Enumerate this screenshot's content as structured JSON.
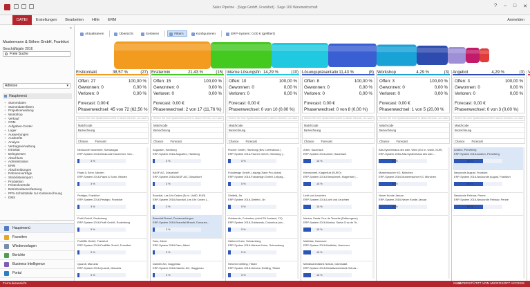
{
  "window": {
    "title": "Sales Pipeline · [Sage GmbH, Frankfurt] · Sage 100 Warenwirtschaft",
    "user_link": "Anmelden"
  },
  "ribbon": {
    "tabs": [
      "DATEI",
      "Erstellungen",
      "Bearbeiten",
      "Hilfe",
      "ERM"
    ]
  },
  "sidebar": {
    "company": "Mustermann & Söhne GmbH, Frankfurt",
    "fiscal_year": "Geschäftsjahr 2016",
    "search_placeholder": "Freie Suche",
    "address_select": "Adresse",
    "menu_head": "Hauptmenü",
    "tree": [
      "Stammdaten",
      "Stammdatenlisten",
      "Projektverwaltung",
      "Workshop",
      "Verkauf",
      "CRM",
      "Aufgaben-Center",
      "Lager",
      "Auswertungen",
      "Auskünfte",
      "Analyse",
      "Vertragsverwaltung",
      "Intrastat",
      "Belegwesen",
      "Abschluss",
      "Administration",
      "ERM",
      "Abschreibungen",
      "Rahmenverträge",
      "Stücklistenimport",
      "Produktion",
      "Fristenkontrolle",
      "Betriebsdatenerfassung",
      "PPS-Schnittstelle zur Kostenrechnung",
      "DMS"
    ],
    "nav": [
      {
        "label": "Hauptmenü",
        "icon": "home-icon",
        "color": "#4f7cc4"
      },
      {
        "label": "Favoriten",
        "icon": "star-icon",
        "color": "#e2a827"
      },
      {
        "label": "Wiedervorlagen",
        "icon": "clock-icon",
        "color": "#7a8ea8"
      },
      {
        "label": "Berichte",
        "icon": "report-icon",
        "color": "#4f9c52"
      },
      {
        "label": "Business Intelligence",
        "icon": "chart-icon",
        "color": "#7c5cb8"
      },
      {
        "label": "Portal",
        "icon": "globe-icon",
        "color": "#2f7fbf"
      }
    ]
  },
  "toolbar": {
    "buttons": [
      "Aktualisieren",
      "Übersicht",
      "Sortieren",
      "Filtern",
      "Konfigurieren",
      "ERP-System: 0,00 € (gefiltert)"
    ],
    "active": "Filtern"
  },
  "funnel_colors": [
    "#f39b1f",
    "#44c921",
    "#20c8e0",
    "#3a5fd2",
    "#18a2d6",
    "#2e4bb0",
    "#9e8fd6",
    "#c21b6a",
    "#e03c3c"
  ],
  "filter_placeholder": "Ziehen Sie eine Spaltenüberschrift in diesen Bereich, um nach dieser Spalte zu gruppieren",
  "field_labels": {
    "row1": "Matchcode",
    "row2": "Bezeichnung",
    "col_a": "Chance",
    "col_b": "Forecast"
  },
  "stages": [
    {
      "name": "Erstkontakt",
      "percent": "38,57 %",
      "count": "(27)",
      "color": "#f39b1f",
      "offen_label": "Offen: 27",
      "offen_pct": "100,00 %",
      "gewonnen_label": "Gewonnen: 0",
      "gewonnen_pct": "0,00 %",
      "verloren_label": "Verloren: 0",
      "verloren_pct": "0,00 %",
      "forecast": "Forecast: 0,00 €",
      "phasen": "Phasenwechsel: 45 von 72 (62,50 %",
      "cards": [
        {
          "l1": "Neukunde November, Schwangau",
          "l2": "ERP-System 2016-Neukunde November, Sch...",
          "pct": "3 %",
          "fill": 0.03,
          "l3": ""
        },
        {
          "l1": "Papst & Sohn, Minden",
          "l2": "ERP-System 2016-Papst & Sohn, Minden",
          "pct": "3 %",
          "fill": 0.03,
          "l3": ""
        },
        {
          "l1": "Pestigro, Frankfurt",
          "l2": "ERP-System 2016-Pestigro, Frankfurt",
          "pct": "3 %",
          "fill": 0.03,
          "l3": ""
        },
        {
          "l1": "Profil GmbH, Rodenberg",
          "l2": "ERP-System 2016-Profil GmbH, Rodenberg",
          "pct": "3 %",
          "fill": 0.03,
          "l3": ""
        },
        {
          "l1": "Profiliffe GmbH, Frankfurt",
          "l2": "ERP-System 2016-Profiliffe GmbH, Frankfurt",
          "pct": "3 %",
          "fill": 0.03,
          "l3": ""
        },
        {
          "l1": "Quandt, Manuela",
          "l2": "ERP-System 2016-Quandt, Manuela",
          "pct": "3 %",
          "fill": 0.03,
          "l3": ""
        }
      ]
    },
    {
      "name": "Ersttermin",
      "percent": "21,43 %",
      "count": "(15)",
      "color": "#44c921",
      "offen_label": "Offen: 15",
      "offen_pct": "100,00 %",
      "gewonnen_label": "Gewonnen: 0",
      "gewonnen_pct": "0,00 %",
      "verloren_label": "Verloren: 0",
      "verloren_pct": "0,00 %",
      "forecast": "Forecast: 0,00 €",
      "phasen": "Phasenwechsel: 2 von 17 (11,76 %)",
      "cards": [
        {
          "l1": "Augusten, Hamburg",
          "l2": "ERP-System 2016-Augusten, Hamburg",
          "pct": "3 %",
          "fill": 0.03,
          "l3": ""
        },
        {
          "l1": "BASF AG, Düsseldorf",
          "l2": "ERP-System 2016-BASF AG, Düsseldorf",
          "pct": "3 %",
          "fill": 0.03,
          "l3": ""
        },
        {
          "l1": "Bourdial, Les Uhr Cedex (Er.m. UstID, EUR)",
          "l2": "ERP-System 2016-Bourdial, Les Uhr Cedex (...",
          "pct": "3 %",
          "fill": 0.03,
          "l3": ""
        },
        {
          "l1": "Braunfall Brauei, Donaueschingen",
          "l2": "ERP-System 2016-Braunfall Brauei, Donaues...",
          "pct": "3 %",
          "fill": 0.03,
          "l3": ""
        },
        {
          "l1": "Dam, Albert",
          "l2": "ERP-System 2016-Dam, Albert",
          "pct": "3 %",
          "fill": 0.03,
          "l3": ""
        },
        {
          "l1": "Daimler AG, Gaggenau",
          "l2": "ERP-System 2016-Daimler AG, Gaggenau",
          "pct": "3 %",
          "fill": 0.03,
          "l3": ""
        }
      ]
    },
    {
      "name": "Interne Lösungsfin",
      "percent": "14,29 %",
      "count": "(10)",
      "color": "#20c8e0",
      "offen_label": "Offen: 10",
      "offen_pct": "100,00 %",
      "gewonnen_label": "Gewonnen: 0",
      "gewonnen_pct": "0,00 %",
      "verloren_label": "Verloren: 0",
      "verloren_pct": "0,00 %",
      "forecast": "Forecast: 0,00 €",
      "phasen": "Phasenwechsel: 0 von 10 (0,00 %)",
      "cards": [
        {
          "l1": "Fischer GmbH, Hamburg (Bev. Lieferansch.)",
          "l2": "ERP-System 2016-Fischer GmbH, Hamburg (...",
          "pct": "5 %",
          "fill": 0.05,
          "l3": ""
        },
        {
          "l1": "Fotodesign GmbH, Leipzig (Sarie Pro-vision)",
          "l2": "ERP-System 2016-Fotodesign GmbH, Leipzig...",
          "pct": "5 %",
          "fill": 0.05,
          "l3": ""
        },
        {
          "l1": "Gleifeld, Jin",
          "l2": "ERP-System 2016-Gleifeld, Jin",
          "pct": "5 %",
          "fill": 0.05,
          "l3": ""
        },
        {
          "l1": "Goldsands, Columbus (nicht EU Ausland, FX)",
          "l2": "ERP-System 2016-Goldsands, Columbus (nic...",
          "pct": "5 %",
          "fill": 0.05,
          "l3": ""
        },
        {
          "l1": "Härterei Kuhn, Schramberg",
          "l2": "ERP-System 2016-Härterei Kuhn, Schramberg",
          "pct": "5 %",
          "fill": 0.05,
          "l3": ""
        },
        {
          "l1": "Helvenn Dettling, Titisee",
          "l2": "ERP-System 2016-Helvenn Dettling, Titisee",
          "pct": "5 %",
          "fill": 0.05,
          "l3": ""
        }
      ]
    },
    {
      "name": "Lösungspräsentatio",
      "percent": "11,43 %",
      "count": "(8)",
      "color": "#3a5fd2",
      "offen_label": "Offen: 8",
      "offen_pct": "100,00 %",
      "gewonnen_label": "Gewonnen: 0",
      "gewonnen_pct": "0,00 %",
      "verloren_label": "Verloren: 0",
      "verloren_pct": "0,00 %",
      "forecast": "Forecast: 0,00 €",
      "phasen": "Phasenwechsel: 0 von 8 (0,00 %)",
      "cards": [
        {
          "l1": "Arber, Sauerlach",
          "l2": "ERP-System 2016-Arber, Sauerlach",
          "pct": "15 %",
          "fill": 0.15,
          "l3": ""
        },
        {
          "l1": "Klenschnelt, Klagenfurt (EURO)",
          "l2": "ERP-System 2016-Klenschnelt, Klagenfurt (...",
          "pct": "15 %",
          "fill": 0.15,
          "l3": ""
        },
        {
          "l1": "Licht und Leuchten",
          "l2": "ERP-System 2016-Licht und Leuchten",
          "pct": "15 %",
          "fill": 0.15,
          "l3": ""
        },
        {
          "l1": "Marina, Santa Cruz de Tenerife (Drittersgene)",
          "l2": "ERP-System 2016-Marina, Santa Cruz de Te...",
          "pct": "15 %",
          "fill": 0.15,
          "l3": ""
        },
        {
          "l1": "Matthias, Hannover",
          "l2": "ERP-System 2016-Matthias, Hannover",
          "pct": "15 %",
          "fill": 0.15,
          "l3": ""
        },
        {
          "l1": "Metallwarenfabrik Schulz, Darmstadt",
          "l2": "ERP-System 2016-Metallwarenfabrik Schulz...",
          "pct": "15 %",
          "fill": 0.15,
          "l3": ""
        }
      ]
    },
    {
      "name": "Workshop",
      "percent": "4,29 %",
      "count": "(3)",
      "color": "#18a2d6",
      "offen_label": "Offen: 3",
      "offen_pct": "100,00 %",
      "gewonnen_label": "Gewonnen: 0",
      "gewonnen_pct": "0,00 %",
      "verloren_label": "Verloren: 0",
      "verloren_pct": "0,00 %",
      "forecast": "Forecast: 0,00 €",
      "phasen": "Phasenwechsel: 1 von 5 (20,00 %",
      "cards": [
        {
          "l1": "Alfa-Systemhaus des sdm, Wien (EU m. UstID, EUR)",
          "l2": "ERP-System 2016-Alfa-Systemhaus des sdm...",
          "pct": "35 %",
          "fill": 0.35,
          "l3": ""
        },
        {
          "l1": "Mustermacher KG, München",
          "l2": "ERP-System 2016-Mustermacher KG, München",
          "pct": "35 %",
          "fill": 0.35,
          "l3": ""
        },
        {
          "l1": "Neuer Kunde Januar",
          "l2": "ERP-System 2016-Neuer Kunde Januar",
          "pct": "35 %",
          "fill": 0.35,
          "l3": ""
        }
      ]
    },
    {
      "name": "Angebot",
      "percent": "4,29 %",
      "count": "(3)",
      "color": "#2e4bb0",
      "offen_label": "Offen: 3",
      "offen_pct": "100,00 %",
      "gewonnen_label": "Gewonnen: 0",
      "gewonnen_pct": "0,00 %",
      "verloren_label": "Verloren: 0",
      "verloren_pct": "0,00 %",
      "forecast": "Forecast: 0,00 €",
      "phasen": "Phasenwechsel: 0 von 3 (0,00 %)",
      "cards": [
        {
          "l1": "Andero, Pinneberg",
          "l2": "ERP-System 2016-Andero, Pinneberg",
          "pct": "60 %",
          "fill": 0.6,
          "l3": ""
        },
        {
          "l1": "Neukunde August, Frankfurt",
          "l2": "ERP-System 2016-Neukunde August, Frankfurt",
          "pct": "60 %",
          "fill": 0.6,
          "l3": ""
        },
        {
          "l1": "Neukunde Februar, Penne",
          "l2": "ERP-System 2016-Neukunde Februar, Penne",
          "pct": "60 %",
          "fill": 0.6,
          "l3": ""
        }
      ]
    }
  ],
  "partial_stage": {
    "name": "Ve"
  },
  "statusbar": {
    "left": "Formularansicht",
    "num": "NUM",
    "right": "UNTERSTÜTZT VON MICROSOFT ACCESS"
  }
}
